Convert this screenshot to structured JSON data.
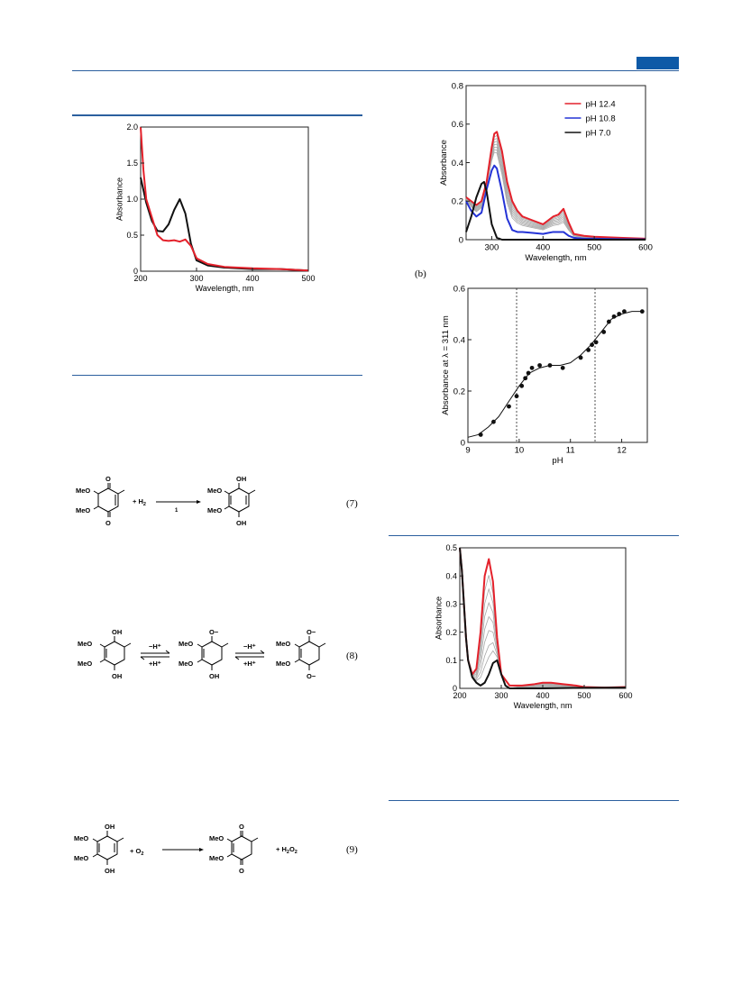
{
  "equations": {
    "eq7": {
      "number": "(7)",
      "reactant_sub1": "MeO",
      "reactant_sub2": "MeO",
      "plus": "+ H",
      "plus_sub": "2",
      "catalyst": "1",
      "product_sub1": "MeO",
      "product_sub2": "MeO",
      "oh": "OH",
      "o": "O"
    },
    "eq8": {
      "number": "(8)",
      "s1_sub1": "MeO",
      "s1_sub2": "MeO",
      "s2_sub1": "MeO",
      "s2_sub2": "MeO",
      "s3_sub1": "MeO",
      "s3_sub2": "MeO",
      "oh": "OH",
      "ominus": "O−",
      "minus_h": "−H⁺",
      "plus_h": "+H⁺"
    },
    "eq9": {
      "number": "(9)",
      "sub1": "MeO",
      "sub2": "MeO",
      "plus_o2": "+ O",
      "o2_sub": "2",
      "prod_sub1": "MeO",
      "prod_sub2": "MeO",
      "plus_h2o2": "+ H",
      "h2o2_a": "2",
      "h2o2_b": "O",
      "h2o2_c": "2",
      "oh": "OH",
      "o": "O"
    }
  },
  "panel_b_label": "(b)",
  "colors": {
    "red": "#e4212b",
    "blue": "#2433d6",
    "black": "#111111",
    "gray": "#a8a8a8",
    "rule": "#2b5f9e"
  },
  "chart_data": [
    {
      "id": "fig1",
      "type": "line",
      "xlabel": "Wavelength, nm",
      "ylabel": "Absorbance",
      "xlim": [
        200,
        500
      ],
      "ylim": [
        0,
        2.0
      ],
      "xticks": [
        200,
        300,
        400,
        500
      ],
      "yticks": [
        0,
        0.5,
        1.0,
        1.5,
        2.0
      ],
      "ytick_labels": [
        "0",
        "0.5",
        "1.0",
        "1.5",
        "2.0"
      ],
      "series": [
        {
          "color": "black",
          "x": [
            200,
            210,
            220,
            230,
            240,
            250,
            260,
            270,
            280,
            290,
            300,
            320,
            350,
            400,
            450,
            500
          ],
          "y": [
            1.3,
            0.95,
            0.7,
            0.56,
            0.55,
            0.65,
            0.85,
            1.0,
            0.8,
            0.38,
            0.15,
            0.08,
            0.05,
            0.03,
            0.03,
            0.01
          ]
        },
        {
          "color": "red",
          "x": [
            200,
            205,
            210,
            220,
            230,
            240,
            250,
            260,
            270,
            280,
            290,
            300,
            320,
            350,
            400,
            450,
            500
          ],
          "y": [
            2.0,
            1.4,
            1.0,
            0.75,
            0.5,
            0.43,
            0.42,
            0.43,
            0.41,
            0.44,
            0.35,
            0.18,
            0.1,
            0.06,
            0.04,
            0.03,
            0.01
          ]
        }
      ]
    },
    {
      "id": "fig2a",
      "type": "line",
      "xlabel": "Wavelength, nm",
      "ylabel": "Absorbance",
      "xlim": [
        250,
        600
      ],
      "ylim": [
        0,
        0.8
      ],
      "xticks": [
        300,
        400,
        500,
        600
      ],
      "yticks": [
        0,
        0.2,
        0.4,
        0.6,
        0.8
      ],
      "ytick_labels": [
        "0",
        "0.2",
        "0.4",
        "0.6",
        "0.8"
      ],
      "legend": [
        "pH 12.4",
        "pH 10.8",
        "pH 7.0"
      ],
      "legend_colors": [
        "red",
        "blue",
        "black"
      ],
      "gray_scales": [
        0.42,
        0.5,
        0.58,
        0.66,
        0.74,
        0.82,
        0.9
      ],
      "series": [
        {
          "name": "pH 12.4",
          "color": "red",
          "x": [
            250,
            260,
            270,
            280,
            290,
            300,
            305,
            310,
            320,
            330,
            340,
            350,
            360,
            380,
            400,
            410,
            420,
            430,
            440,
            450,
            460,
            480,
            500,
            550,
            600
          ],
          "y": [
            0.22,
            0.2,
            0.18,
            0.2,
            0.3,
            0.48,
            0.55,
            0.56,
            0.46,
            0.3,
            0.2,
            0.15,
            0.12,
            0.1,
            0.08,
            0.1,
            0.12,
            0.13,
            0.16,
            0.09,
            0.03,
            0.02,
            0.015,
            0.01,
            0.005
          ]
        },
        {
          "name": "pH 10.8",
          "color": "blue",
          "x": [
            250,
            260,
            270,
            280,
            290,
            300,
            305,
            310,
            320,
            330,
            340,
            350,
            360,
            380,
            400,
            410,
            420,
            430,
            440,
            450,
            460,
            480,
            500,
            550,
            600
          ],
          "y": [
            0.2,
            0.15,
            0.12,
            0.14,
            0.26,
            0.36,
            0.385,
            0.37,
            0.25,
            0.11,
            0.05,
            0.04,
            0.04,
            0.035,
            0.03,
            0.035,
            0.04,
            0.04,
            0.04,
            0.02,
            0.01,
            0.005,
            0.005,
            0.003,
            0.002
          ]
        },
        {
          "name": "pH 7.0",
          "color": "black",
          "x": [
            250,
            260,
            270,
            280,
            285,
            290,
            300,
            310,
            320,
            340,
            400,
            600
          ],
          "y": [
            0.04,
            0.12,
            0.22,
            0.29,
            0.3,
            0.25,
            0.08,
            0.01,
            0.0,
            0.0,
            0.0,
            0.0
          ]
        }
      ]
    },
    {
      "id": "fig2b",
      "type": "scatter",
      "xlabel": "pH",
      "ylabel": "Absorbance at λ = 311 nm",
      "xlim": [
        9,
        12.5
      ],
      "ylim": [
        0,
        0.6
      ],
      "xticks": [
        9,
        10,
        11,
        12
      ],
      "yticks": [
        0,
        0.2,
        0.4,
        0.6
      ],
      "ytick_labels": [
        "0",
        "0.2",
        "0.4",
        "0.6"
      ],
      "vlines": [
        9.95,
        11.48
      ],
      "points": {
        "x": [
          9.25,
          9.5,
          9.8,
          9.95,
          10.05,
          10.12,
          10.18,
          10.25,
          10.4,
          10.6,
          10.85,
          11.2,
          11.35,
          11.42,
          11.5,
          11.65,
          11.75,
          11.85,
          11.95,
          12.05,
          12.4
        ],
        "y": [
          0.03,
          0.08,
          0.14,
          0.18,
          0.22,
          0.25,
          0.27,
          0.29,
          0.3,
          0.3,
          0.29,
          0.33,
          0.36,
          0.38,
          0.39,
          0.43,
          0.47,
          0.49,
          0.5,
          0.51,
          0.51
        ]
      },
      "fit": {
        "x": [
          9.0,
          9.2,
          9.4,
          9.6,
          9.8,
          10.0,
          10.2,
          10.4,
          10.6,
          10.8,
          11.0,
          11.2,
          11.4,
          11.6,
          11.8,
          12.0,
          12.2,
          12.4
        ],
        "y": [
          0.02,
          0.03,
          0.06,
          0.1,
          0.16,
          0.22,
          0.27,
          0.29,
          0.3,
          0.3,
          0.31,
          0.34,
          0.38,
          0.43,
          0.48,
          0.5,
          0.51,
          0.51
        ]
      }
    },
    {
      "id": "fig3",
      "type": "line",
      "xlabel": "Wavelength, nm",
      "ylabel": "Absorbance",
      "xlim": [
        200,
        600
      ],
      "ylim": [
        0,
        0.5
      ],
      "xticks": [
        200,
        300,
        400,
        500,
        600
      ],
      "yticks": [
        0,
        0.1,
        0.2,
        0.3,
        0.4,
        0.5
      ],
      "ytick_labels": [
        "0",
        "0.1",
        "0.2",
        "0.3",
        "0.4",
        "0.5"
      ],
      "gray_scales": [
        0.15,
        0.25,
        0.38,
        0.5,
        0.62,
        0.74,
        0.86
      ],
      "series": [
        {
          "color": "red",
          "x": [
            200,
            205,
            210,
            215,
            220,
            230,
            240,
            250,
            260,
            270,
            280,
            290,
            300,
            320,
            350,
            380,
            400,
            420,
            450,
            480,
            500,
            550,
            600
          ],
          "y": [
            0.5,
            0.42,
            0.3,
            0.18,
            0.1,
            0.05,
            0.07,
            0.2,
            0.4,
            0.46,
            0.38,
            0.18,
            0.05,
            0.01,
            0.01,
            0.015,
            0.02,
            0.02,
            0.015,
            0.01,
            0.005,
            0.003,
            0.005
          ]
        },
        {
          "color": "black",
          "x": [
            200,
            205,
            210,
            215,
            220,
            230,
            240,
            250,
            260,
            270,
            280,
            290,
            300,
            310,
            320,
            350,
            400,
            500,
            600
          ],
          "y": [
            0.5,
            0.42,
            0.3,
            0.18,
            0.1,
            0.04,
            0.02,
            0.01,
            0.02,
            0.05,
            0.09,
            0.1,
            0.05,
            0.01,
            0.0,
            0.0,
            0.0,
            0.002,
            0.003
          ]
        }
      ]
    }
  ]
}
